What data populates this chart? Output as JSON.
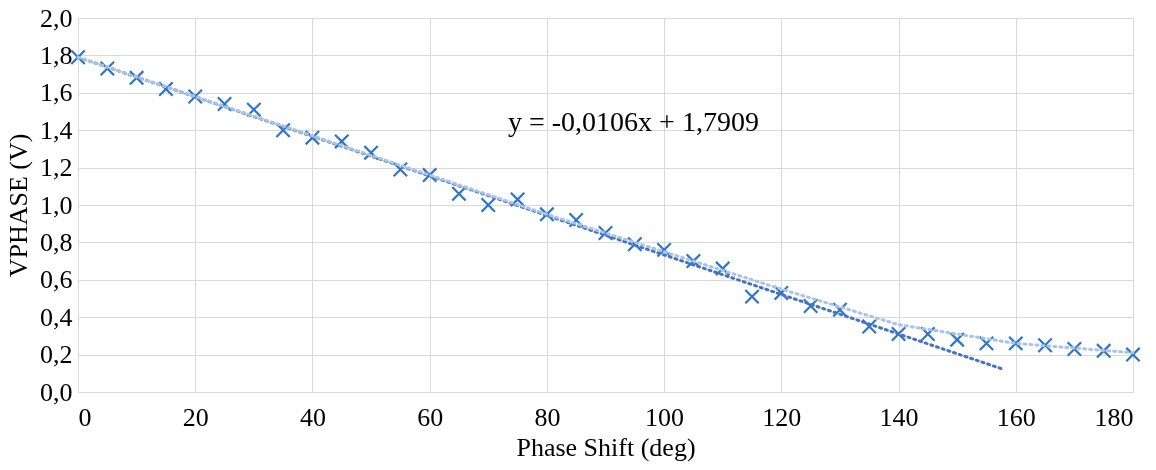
{
  "chart_data": {
    "type": "scatter",
    "xlabel": "Phase Shift  (deg)",
    "ylabel": "VPHASE (V)",
    "xlim": [
      0,
      180
    ],
    "xticks": [
      0,
      20,
      40,
      60,
      80,
      100,
      120,
      140,
      160,
      180
    ],
    "ylim": [
      0,
      2
    ],
    "yticks": [
      {
        "value": 0,
        "label": "0,0"
      },
      {
        "value": 0.2,
        "label": "0,2"
      },
      {
        "value": 0.4,
        "label": "0,4"
      },
      {
        "value": 0.6,
        "label": "0,6"
      },
      {
        "value": 0.8,
        "label": "0,8"
      },
      {
        "value": 1.0,
        "label": "1,0"
      },
      {
        "value": 1.2,
        "label": "1,2"
      },
      {
        "value": 1.4,
        "label": "1,4"
      },
      {
        "value": 1.6,
        "label": "1,6"
      },
      {
        "value": 1.8,
        "label": "1,8"
      },
      {
        "value": 2.0,
        "label": "2,0"
      }
    ],
    "grid": true,
    "annotations": [
      "y = -0,0106x + 1,7909"
    ],
    "series": [
      {
        "marker": "cross",
        "color": "#2e75c6",
        "x": [
          0,
          5,
          10,
          15,
          20,
          25,
          30,
          35,
          40,
          45,
          50,
          55,
          60,
          65,
          70,
          75,
          80,
          85,
          90,
          95,
          100,
          105,
          110,
          115,
          120,
          125,
          130,
          135,
          140,
          145,
          150,
          155,
          160,
          165,
          170,
          175,
          180
        ],
        "values": [
          1.79,
          1.73,
          1.68,
          1.62,
          1.58,
          1.54,
          1.51,
          1.4,
          1.36,
          1.34,
          1.28,
          1.19,
          1.16,
          1.06,
          1.0,
          1.03,
          0.95,
          0.92,
          0.85,
          0.79,
          0.76,
          0.7,
          0.66,
          0.51,
          0.53,
          0.46,
          0.44,
          0.35,
          0.31,
          0.31,
          0.28,
          0.26,
          0.26,
          0.25,
          0.23,
          0.22,
          0.2
        ]
      },
      {
        "type": "line",
        "line_style": "dotted",
        "color": "#4472c4",
        "x": [
          0,
          158
        ],
        "values": [
          1.79,
          0.12
        ]
      },
      {
        "type": "line",
        "line_style": "dotted",
        "color": "#a9c4e8",
        "x": [
          0,
          40,
          80,
          120,
          140,
          160,
          180
        ],
        "values": [
          1.79,
          1.37,
          0.95,
          0.55,
          0.36,
          0.26,
          0.21
        ]
      }
    ]
  }
}
